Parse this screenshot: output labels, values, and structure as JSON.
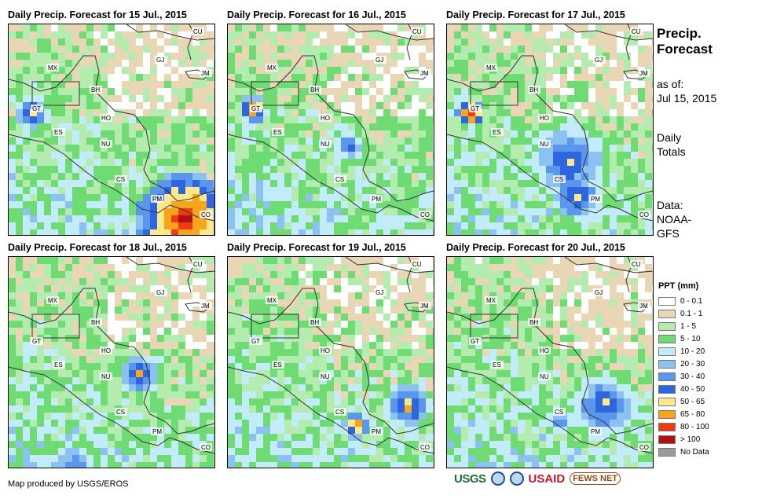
{
  "panels": [
    {
      "title": "Daily Precip. Forecast for 15 Jul., 2015"
    },
    {
      "title": "Daily Precip. Forecast for 16 Jul., 2015"
    },
    {
      "title": "Daily Precip. Forecast for 17 Jul., 2015"
    },
    {
      "title": "Daily Precip. Forecast for 18 Jul., 2015"
    },
    {
      "title": "Daily Precip. Forecast for 19 Jul., 2015"
    },
    {
      "title": "Daily Precip. Forecast for 20 Jul., 2015"
    }
  ],
  "country_labels": [
    "MX",
    "BH",
    "GT",
    "HO",
    "ES",
    "NU",
    "CS",
    "PM",
    "CO",
    "CU",
    "JM",
    "GJ"
  ],
  "sidebar": {
    "title": "Precip. Forecast",
    "as_of_label": "as of:",
    "as_of_date": "Jul 15, 2015",
    "daily_totals": "Daily Totals",
    "data_label": "Data:",
    "data_source": "NOAA-GFS"
  },
  "legend": {
    "title": "PPT (mm)",
    "items": [
      {
        "label": "0 - 0.1",
        "color": "#ffffff"
      },
      {
        "label": "0.1 - 1",
        "color": "#e8d6b4"
      },
      {
        "label": "1 - 5",
        "color": "#b4ecb0"
      },
      {
        "label": "5 - 10",
        "color": "#6edc72"
      },
      {
        "label": "10 - 20",
        "color": "#c2ecfa"
      },
      {
        "label": "20 - 30",
        "color": "#8cc2f2"
      },
      {
        "label": "30 - 40",
        "color": "#5a96ec"
      },
      {
        "label": "40 - 50",
        "color": "#2e66e0"
      },
      {
        "label": "50 - 65",
        "color": "#ffe88a"
      },
      {
        "label": "65 - 80",
        "color": "#f8a51e"
      },
      {
        "label": "80 - 100",
        "color": "#ef3b14"
      },
      {
        "label": "> 100",
        "color": "#b01212"
      },
      {
        "label": "No Data",
        "color": "#9b9b9b"
      }
    ]
  },
  "footer": {
    "credit": "Map produced by USGS/EROS",
    "logos": [
      "USGS",
      "NOAA",
      "USAID",
      "FEWS NET"
    ]
  }
}
